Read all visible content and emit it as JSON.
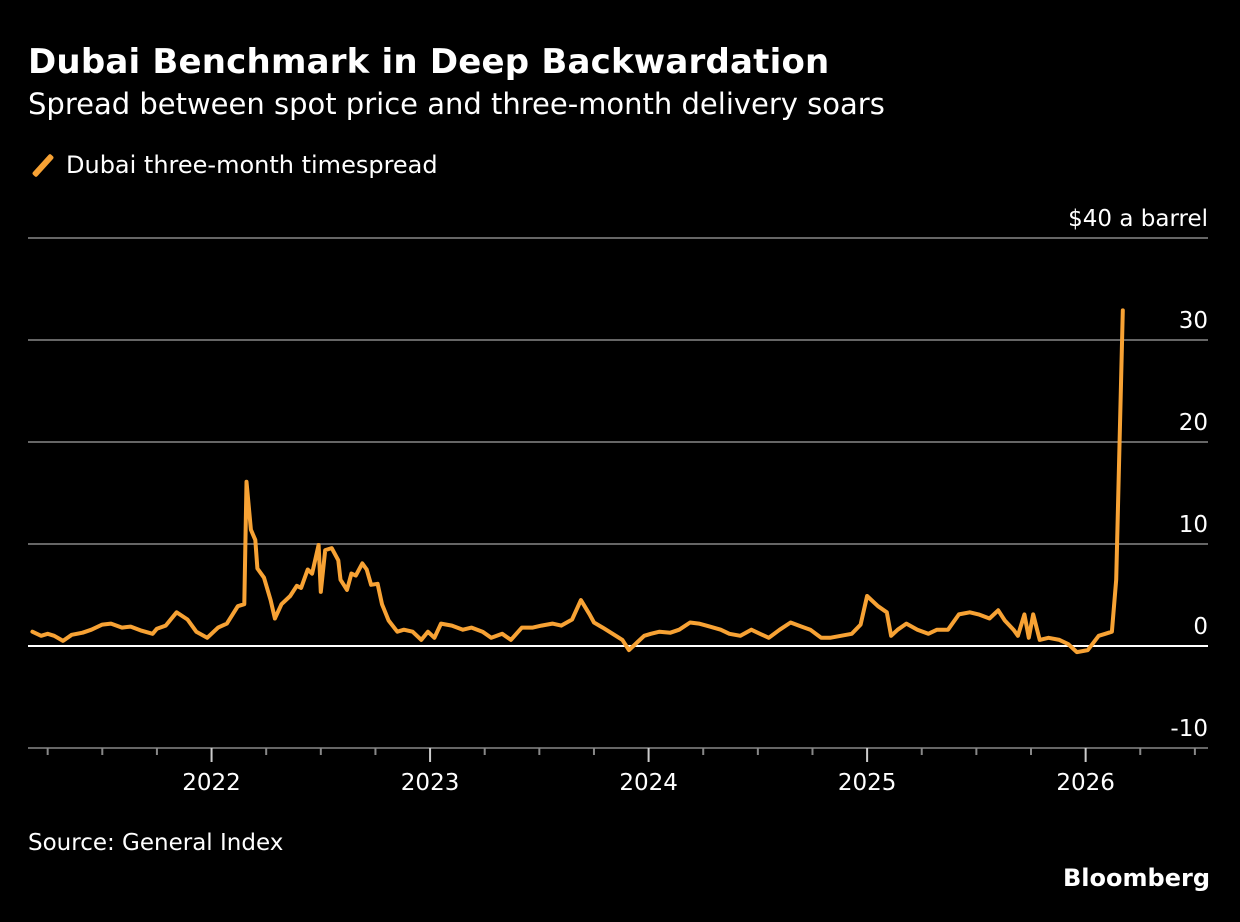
{
  "header": {
    "title": "Dubai Benchmark in Deep Backwardation",
    "subtitle": "Spread between spot price and three-month delivery soars"
  },
  "legend": {
    "label": "Dubai three-month timespread",
    "color": "#f7a234"
  },
  "footer": {
    "source": "Source: General Index",
    "brand": "Bloomberg"
  },
  "chart_data": {
    "type": "line",
    "title": "Dubai Benchmark in Deep Backwardation",
    "subtitle": "Spread between spot price and three-month delivery soars",
    "xlabel": "",
    "ylabel": "$ a barrel",
    "y_unit_label": "$40 a barrel",
    "ylim": [
      -10,
      40
    ],
    "xlim": [
      2021.16,
      2026.56
    ],
    "yticks": [
      40,
      30,
      20,
      10,
      0,
      -10
    ],
    "ytick_labels": [
      "$40 a barrel",
      "30",
      "20",
      "10",
      "0",
      "-10"
    ],
    "xticks": [
      2022,
      2023,
      2024,
      2025,
      2026
    ],
    "xtick_labels": [
      "2022",
      "2023",
      "2024",
      "2025",
      "2026"
    ],
    "minor_xticks_per_year": 4,
    "grid": true,
    "legend_position": "top-left",
    "series": [
      {
        "name": "Dubai three-month timespread",
        "color": "#f7a234",
        "x": [
          2021.18,
          2021.22,
          2021.25,
          2021.28,
          2021.32,
          2021.36,
          2021.41,
          2021.45,
          2021.5,
          2021.54,
          2021.59,
          2021.63,
          2021.68,
          2021.73,
          2021.75,
          2021.79,
          2021.84,
          2021.89,
          2021.93,
          2021.98,
          2022.03,
          2022.07,
          2022.12,
          2022.15,
          2022.16,
          2022.18,
          2022.2,
          2022.21,
          2022.24,
          2022.27,
          2022.29,
          2022.32,
          2022.36,
          2022.39,
          2022.41,
          2022.44,
          2022.46,
          2022.49,
          2022.5,
          2022.52,
          2022.55,
          2022.58,
          2022.59,
          2022.62,
          2022.64,
          2022.66,
          2022.69,
          2022.71,
          2022.73,
          2022.76,
          2022.78,
          2022.81,
          2022.85,
          2022.88,
          2022.92,
          2022.96,
          2022.99,
          2023.02,
          2023.05,
          2023.1,
          2023.15,
          2023.19,
          2023.24,
          2023.28,
          2023.33,
          2023.37,
          2023.42,
          2023.47,
          2023.51,
          2023.56,
          2023.6,
          2023.65,
          2023.69,
          2023.73,
          2023.75,
          2023.79,
          2023.88,
          2023.91,
          2023.95,
          2023.98,
          2024.01,
          2024.05,
          2024.1,
          2024.14,
          2024.19,
          2024.23,
          2024.28,
          2024.33,
          2024.37,
          2024.42,
          2024.47,
          2024.51,
          2024.55,
          2024.6,
          2024.65,
          2024.7,
          2024.74,
          2024.79,
          2024.83,
          2024.88,
          2024.93,
          2024.97,
          2025.0,
          2025.02,
          2025.05,
          2025.09,
          2025.11,
          2025.14,
          2025.18,
          2025.23,
          2025.28,
          2025.32,
          2025.37,
          2025.42,
          2025.47,
          2025.51,
          2025.56,
          2025.6,
          2025.63,
          2025.67,
          2025.69,
          2025.72,
          2025.74,
          2025.76,
          2025.79,
          2025.83,
          2025.88,
          2025.92,
          2025.96,
          2026.01,
          2026.06,
          2026.09,
          2026.12,
          2026.14,
          2026.16,
          2026.17
        ],
        "values": [
          1.4,
          1.0,
          1.2,
          1.0,
          0.5,
          1.1,
          1.3,
          1.6,
          2.1,
          2.2,
          1.8,
          1.9,
          1.5,
          1.2,
          1.7,
          2.0,
          3.3,
          2.6,
          1.4,
          0.8,
          1.8,
          2.2,
          3.9,
          4.1,
          16.1,
          11.4,
          10.4,
          7.6,
          6.7,
          4.5,
          2.7,
          4.1,
          4.9,
          5.9,
          5.7,
          7.5,
          7.1,
          9.9,
          5.3,
          9.4,
          9.6,
          8.4,
          6.5,
          5.5,
          7.1,
          6.9,
          8.1,
          7.5,
          6.0,
          6.1,
          4.1,
          2.5,
          1.4,
          1.6,
          1.4,
          0.6,
          1.4,
          0.8,
          2.2,
          2.0,
          1.6,
          1.8,
          1.4,
          0.8,
          1.2,
          0.6,
          1.8,
          1.8,
          2.0,
          2.2,
          2.0,
          2.6,
          4.5,
          3.1,
          2.3,
          1.8,
          0.6,
          -0.4,
          0.4,
          1.0,
          1.2,
          1.4,
          1.3,
          1.6,
          2.3,
          2.2,
          1.9,
          1.6,
          1.2,
          1.0,
          1.6,
          1.2,
          0.8,
          1.6,
          2.3,
          1.9,
          1.6,
          0.8,
          0.8,
          1.0,
          1.2,
          2.1,
          4.9,
          4.5,
          3.9,
          3.3,
          1.0,
          1.6,
          2.2,
          1.6,
          1.2,
          1.6,
          1.6,
          3.1,
          3.3,
          3.1,
          2.7,
          3.5,
          2.5,
          1.6,
          1.0,
          3.1,
          0.8,
          3.1,
          0.6,
          0.8,
          0.6,
          0.2,
          -0.6,
          -0.4,
          1.0,
          1.2,
          1.4,
          6.5,
          24.1,
          32.9
        ]
      }
    ]
  }
}
